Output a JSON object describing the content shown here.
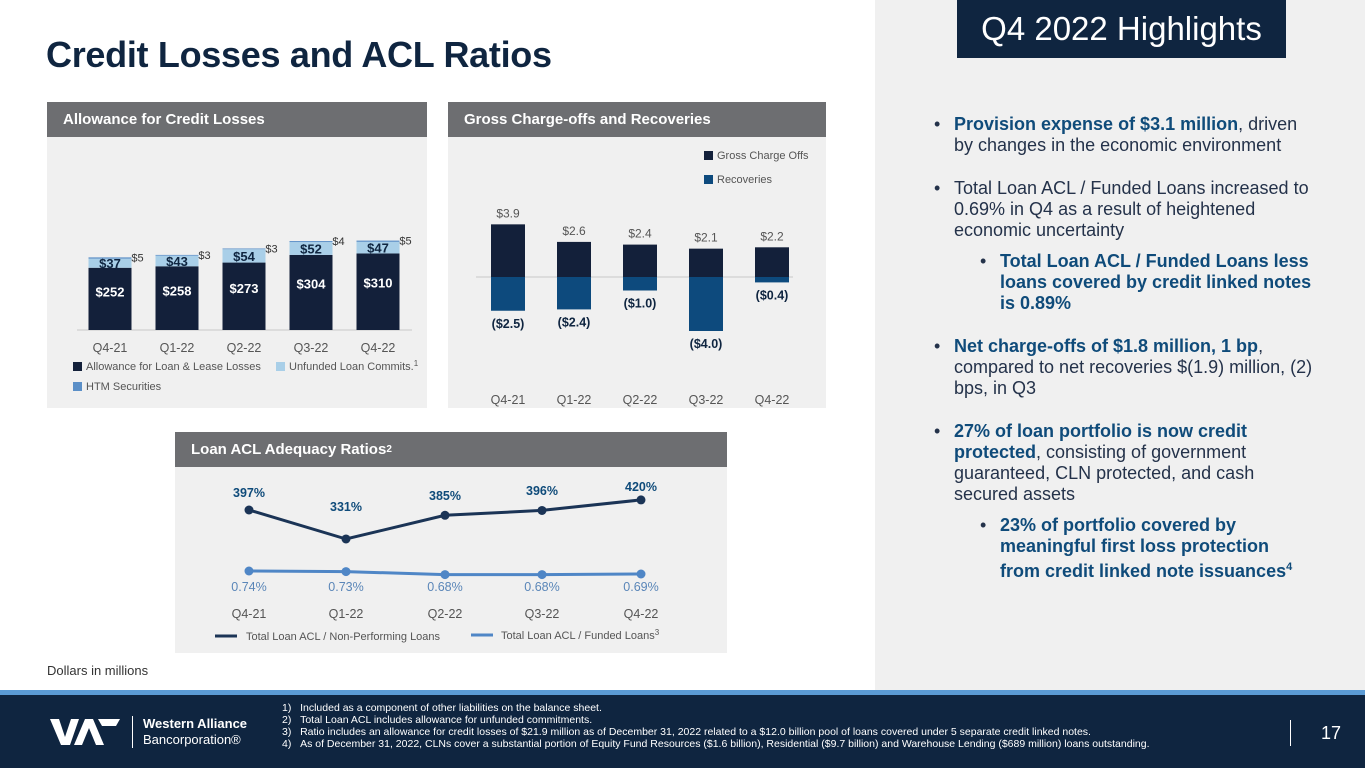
{
  "title": "Credit Losses and ACL Ratios",
  "badge": "Q4 2022 Highlights",
  "bullets": [
    {
      "hl": "Provision expense of $3.1 million",
      "rest": ", driven by changes in the economic environment"
    },
    {
      "hl": "",
      "rest": "Total Loan ACL / Funded Loans increased to 0.69% in Q4 as a result of heightened economic uncertainty"
    },
    {
      "hl": "Total Loan ACL / Funded Loans less loans covered by credit linked notes is 0.89%",
      "rest": ""
    },
    {
      "hl": "Net charge-offs of $1.8 million, 1 bp",
      "rest": ", compared to net recoveries $(1.9) million, (2) bps, in Q3"
    },
    {
      "hl": "27% of loan portfolio is now credit protected",
      "rest": ", consisting of government guaranteed, CLN protected, and cash secured assets"
    },
    {
      "hl": "23% of portfolio covered by meaningful first loss protection from credit linked note issuances",
      "sup": "4",
      "rest": ""
    }
  ],
  "bullet_marker": "•",
  "note": "Dollars in millions",
  "logo": {
    "name": "Western Alliance",
    "sub": "Bancorporation",
    "reg": "®"
  },
  "footnotes": [
    "1)   Included as a component of other liabilities on the balance sheet.",
    "2)   Total Loan ACL includes allowance for unfunded commitments.",
    "3)   Ratio includes an allowance for credit losses of $21.9 million as of December 31, 2022 related to a $12.0 billion pool of loans covered under 5 separate credit linked notes.",
    "4)   As of December 31, 2022, CLNs cover a substantial portion of Equity Fund Resources ($1.6 billion), Residential ($9.7 billion) and Warehouse Lending ($689 million) loans outstanding."
  ],
  "page_number": "17",
  "colors": {
    "navy": "#13203a",
    "light": "#a9cfe8",
    "mid": "#5b8fc7",
    "recov": "#0d4a7d",
    "line2": "#4f86c6"
  },
  "chart_data": [
    {
      "type": "bar",
      "title": "Allowance for Credit Losses",
      "categories": [
        "Q4-21",
        "Q1-22",
        "Q2-22",
        "Q3-22",
        "Q4-22"
      ],
      "series": [
        {
          "name": "Allowance for Loan & Lease Losses",
          "values": [
            252,
            258,
            273,
            304,
            310
          ],
          "labels": [
            "$252",
            "$258",
            "$273",
            "$304",
            "$310"
          ]
        },
        {
          "name": "Unfunded Loan Commits.",
          "sup": "1",
          "values": [
            37,
            43,
            54,
            52,
            47
          ],
          "labels": [
            "$37",
            "$43",
            "$54",
            "$52",
            "$47"
          ]
        },
        {
          "name": "HTM Securities",
          "values": [
            5,
            3,
            3,
            4,
            5
          ],
          "labels": [
            "$5",
            "$3",
            "$3",
            "$4",
            "$5"
          ]
        }
      ],
      "stacked": true,
      "ylim": [
        0,
        380
      ]
    },
    {
      "type": "bar",
      "title": "Gross Charge-offs and Recoveries",
      "categories": [
        "Q4-21",
        "Q1-22",
        "Q2-22",
        "Q3-22",
        "Q4-22"
      ],
      "series": [
        {
          "name": "Gross Charge Offs",
          "values": [
            3.9,
            2.6,
            2.4,
            2.1,
            2.2
          ],
          "labels": [
            "$3.9",
            "$2.6",
            "$2.4",
            "$2.1",
            "$2.2"
          ]
        },
        {
          "name": "Recoveries",
          "values": [
            -2.5,
            -2.4,
            -1.0,
            -4.0,
            -0.4
          ],
          "labels": [
            "($2.5)",
            "($2.4)",
            "($1.0)",
            "($4.0)",
            "($0.4)"
          ]
        }
      ],
      "ylim": [
        -4.5,
        6.5
      ]
    },
    {
      "type": "line",
      "title": "Loan ACL Adequacy Ratios",
      "title_sup": "2",
      "categories": [
        "Q4-21",
        "Q1-22",
        "Q2-22",
        "Q3-22",
        "Q4-22"
      ],
      "series": [
        {
          "name": "Total Loan ACL / Non-Performing Loans",
          "values": [
            397,
            331,
            385,
            396,
            420
          ],
          "labels": [
            "397%",
            "331%",
            "385%",
            "396%",
            "420%"
          ]
        },
        {
          "name": "Total Loan ACL / Funded Loans",
          "sup": "3",
          "values": [
            0.74,
            0.73,
            0.68,
            0.68,
            0.69
          ],
          "labels": [
            "0.74%",
            "0.73%",
            "0.68%",
            "0.68%",
            "0.69%"
          ]
        }
      ]
    }
  ]
}
